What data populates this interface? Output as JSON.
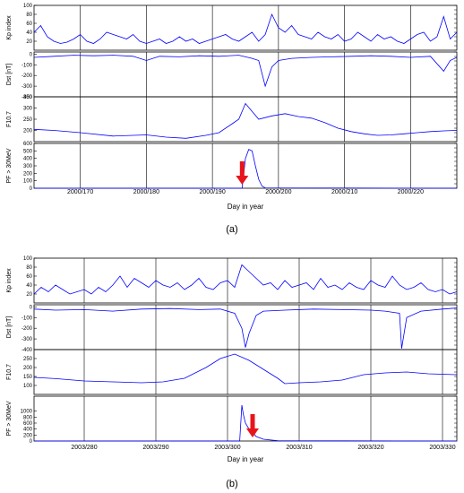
{
  "figure": {
    "panels": [
      {
        "label": "(a)",
        "xlabel": "Day in year"
      },
      {
        "label": "(b)",
        "xlabel": "Day in year"
      }
    ]
  },
  "colors": {
    "series": "#0000ff",
    "arrow": "#e8141c",
    "axis": "#000000",
    "grid": "#000000"
  },
  "chart_data": [
    {
      "type": "line",
      "panel": "(a)",
      "xlabel": "Day in year",
      "x_range": [
        163,
        227
      ],
      "x_ticks": [
        170,
        180,
        190,
        200,
        210,
        220
      ],
      "x_tick_labels": [
        "2000/170",
        "2000/180",
        "2000/190",
        "2000/200",
        "2000/210",
        "2000/220"
      ],
      "arrow_day": 194.5,
      "subplots": [
        {
          "ylabel": "Kp index",
          "ylim": [
            0,
            100
          ],
          "yticks": [
            20,
            40,
            60,
            80,
            100
          ],
          "series": {
            "x": [
              163,
              164,
              165,
              166,
              167,
              168,
              169,
              170,
              171,
              172,
              173,
              174,
              175,
              176,
              177,
              178,
              179,
              180,
              181,
              182,
              183,
              184,
              185,
              186,
              187,
              188,
              189,
              190,
              191,
              192,
              193,
              194,
              195,
              196,
              197,
              198,
              199,
              200,
              201,
              202,
              203,
              204,
              205,
              206,
              207,
              208,
              209,
              210,
              211,
              212,
              213,
              214,
              215,
              216,
              217,
              218,
              219,
              220,
              221,
              222,
              223,
              224,
              225,
              226,
              227
            ],
            "y": [
              40,
              55,
              30,
              20,
              15,
              18,
              25,
              35,
              20,
              15,
              25,
              40,
              35,
              30,
              25,
              35,
              20,
              15,
              20,
              25,
              15,
              20,
              30,
              20,
              25,
              15,
              20,
              25,
              30,
              35,
              25,
              20,
              30,
              40,
              20,
              35,
              80,
              50,
              40,
              55,
              35,
              30,
              25,
              40,
              30,
              25,
              35,
              20,
              25,
              40,
              30,
              20,
              35,
              25,
              30,
              20,
              15,
              25,
              35,
              40,
              20,
              30,
              75,
              25,
              40
            ]
          }
        },
        {
          "ylabel": "Dst [nT]",
          "ylim": [
            -400,
            20
          ],
          "yticks": [
            0,
            -100,
            -200,
            -300,
            -400
          ],
          "series": {
            "x": [
              163,
              166,
              169,
              172,
              175,
              178,
              180,
              182,
              185,
              188,
              191,
              194,
              196,
              197,
              198,
              199,
              200,
              202,
              205,
              208,
              211,
              214,
              217,
              220,
              223,
              225,
              226,
              227
            ],
            "y": [
              -30,
              -20,
              -10,
              -15,
              -10,
              -20,
              -60,
              -20,
              -25,
              -15,
              -20,
              -10,
              -40,
              -60,
              -300,
              -120,
              -60,
              -40,
              -30,
              -25,
              -20,
              -15,
              -20,
              -30,
              -20,
              -160,
              -60,
              -30
            ]
          }
        },
        {
          "ylabel": "F10.7",
          "ylim": [
            150,
            350
          ],
          "yticks": [
            200,
            250,
            300,
            350
          ],
          "series": {
            "x": [
              163,
              166,
              170,
              175,
              180,
              183,
              186,
              189,
              191,
              193,
              194,
              195,
              197,
              199,
              201,
              203,
              205,
              207,
              209,
              211,
              213,
              215,
              217,
              219,
              221,
              223,
              225,
              227
            ],
            "y": [
              205,
              200,
              190,
              175,
              180,
              170,
              165,
              178,
              190,
              230,
              250,
              320,
              250,
              265,
              275,
              262,
              255,
              235,
              210,
              195,
              185,
              178,
              180,
              185,
              190,
              195,
              198,
              200
            ]
          }
        },
        {
          "ylabel": "PF > 30MeV",
          "ylim": [
            0,
            600
          ],
          "yticks": [
            0,
            100,
            200,
            300,
            400,
            500,
            600
          ],
          "series": {
            "x": [
              163,
              194.5,
              195,
              195.5,
              196,
              196.5,
              197,
              197.5,
              198,
              227
            ],
            "y": [
              0,
              0,
              400,
              520,
              500,
              300,
              120,
              30,
              5,
              0
            ]
          }
        }
      ]
    },
    {
      "type": "line",
      "panel": "(b)",
      "xlabel": "Day in year",
      "x_range": [
        273,
        332
      ],
      "x_ticks": [
        280,
        290,
        300,
        310,
        320,
        330
      ],
      "x_tick_labels": [
        "2003/280",
        "2003/290",
        "2003/300",
        "2003/310",
        "2003/320",
        "2003/330"
      ],
      "arrow_day": 303.5,
      "subplots": [
        {
          "ylabel": "Kp index",
          "ylim": [
            0,
            100
          ],
          "yticks": [
            20,
            40,
            60,
            80,
            100
          ],
          "series": {
            "x": [
              273,
              274,
              275,
              276,
              277,
              278,
              279,
              280,
              281,
              282,
              283,
              284,
              285,
              286,
              287,
              288,
              289,
              290,
              291,
              292,
              293,
              294,
              295,
              296,
              297,
              298,
              299,
              300,
              301,
              302,
              303,
              304,
              305,
              306,
              307,
              308,
              309,
              310,
              311,
              312,
              313,
              314,
              315,
              316,
              317,
              318,
              319,
              320,
              321,
              322,
              323,
              324,
              325,
              326,
              327,
              328,
              329,
              330,
              331,
              332
            ],
            "y": [
              20,
              35,
              25,
              40,
              30,
              20,
              25,
              30,
              20,
              35,
              25,
              40,
              60,
              35,
              55,
              45,
              35,
              50,
              40,
              35,
              45,
              30,
              40,
              55,
              35,
              30,
              45,
              50,
              35,
              85,
              70,
              55,
              40,
              45,
              30,
              50,
              35,
              40,
              45,
              30,
              55,
              35,
              40,
              30,
              45,
              35,
              30,
              50,
              40,
              35,
              60,
              40,
              30,
              35,
              45,
              30,
              25,
              30,
              20,
              25
            ]
          }
        },
        {
          "ylabel": "Dst [nT]",
          "ylim": [
            -400,
            20
          ],
          "yticks": [
            0,
            -100,
            -200,
            -300,
            -400
          ],
          "series": {
            "x": [
              273,
              276,
              280,
              284,
              288,
              292,
              296,
              299,
              301,
              302,
              302.5,
              303,
              304,
              305,
              308,
              312,
              316,
              320,
              322,
              324,
              324.3,
              325,
              327,
              330,
              332
            ],
            "y": [
              -20,
              -30,
              -25,
              -40,
              -20,
              -15,
              -25,
              -20,
              -60,
              -200,
              -380,
              -250,
              -80,
              -40,
              -30,
              -20,
              -25,
              -30,
              -40,
              -60,
              -390,
              -100,
              -40,
              -20,
              -10
            ]
          }
        },
        {
          "ylabel": "F10.7",
          "ylim": [
            50,
            300
          ],
          "yticks": [
            100,
            150,
            200,
            250
          ],
          "series": {
            "x": [
              273,
              276,
              280,
              284,
              288,
              291,
              294,
              297,
              299,
              301,
              303,
              305,
              307,
              308,
              310,
              313,
              316,
              319,
              322,
              325,
              328,
              332
            ],
            "y": [
              145,
              138,
              125,
              120,
              115,
              120,
              140,
              200,
              250,
              275,
              240,
              190,
              140,
              110,
              115,
              120,
              130,
              160,
              170,
              175,
              165,
              160
            ]
          }
        },
        {
          "ylabel": "PF > 30MeV",
          "ylim": [
            0,
            1500
          ],
          "yticks": [
            0,
            200,
            400,
            600,
            800,
            1000
          ],
          "series": {
            "x": [
              273,
              301.7,
              302,
              302.2,
              302.5,
              303,
              303.5,
              304,
              305,
              307,
              332
            ],
            "y": [
              0,
              0,
              1200,
              900,
              600,
              400,
              300,
              150,
              60,
              10,
              0
            ]
          }
        }
      ]
    }
  ]
}
